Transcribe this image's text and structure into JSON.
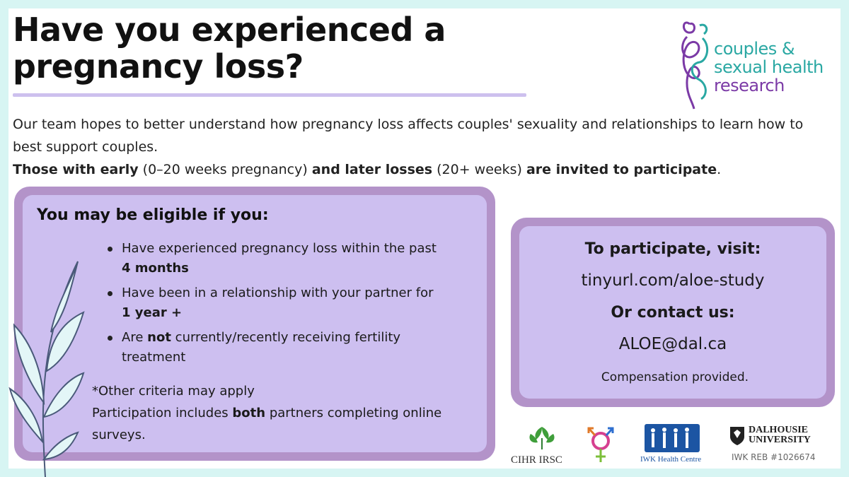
{
  "title": {
    "line1": "Have you experienced a",
    "line2": "pregnancy loss?"
  },
  "brand_logo": {
    "line1": "couples &",
    "line2": "sexual health",
    "line3": "research",
    "colors": {
      "teal": "#2aa8a3",
      "purple": "#7b3aa6"
    }
  },
  "intro": {
    "sentence1": "Our team hopes to better understand how pregnancy loss affects couples' sexuality and relationships to learn how to best support couples.",
    "s2_bold1": "Those with early",
    "s2_plain1": "(0–20 weeks pregnancy)",
    "s2_bold2": "and later losses",
    "s2_plain2": "(20+ weeks)",
    "s2_bold3": "are invited to participate",
    "s2_end": "."
  },
  "eligibility": {
    "heading": "You may be eligible if you:",
    "items": [
      {
        "text": "Have experienced pregnancy loss within the past",
        "sub": "4 months"
      },
      {
        "text": "Have been in a relationship with your partner for",
        "sub": "1 year +"
      },
      {
        "pre": "Are",
        "bold": "not",
        "post": "currently/recently receiving fertility",
        "sub": "treatment"
      }
    ],
    "note": "*Other criteria may apply",
    "footer_pre": "Participation includes",
    "footer_bold": "both",
    "footer_post": "partners completing online surveys."
  },
  "participate": {
    "heading": "To participate, visit:",
    "url": "tinyurl.com/aloe-study",
    "contact_heading": "Or contact us:",
    "email": "ALOE@dal.ca",
    "compensation": "Compensation provided."
  },
  "partner_logos": {
    "cihr": "CIHR IRSC",
    "iwk": "IWK Health Centre",
    "dal_line1": "DALHOUSIE",
    "dal_line2": "UNIVERSITY",
    "reb": "IWK REB #1026674"
  },
  "colors": {
    "background": "#d7f5f3",
    "panel_border": "#b393c9",
    "panel_fill": "#cdbff0",
    "title_rule": "#cdc0ee"
  }
}
